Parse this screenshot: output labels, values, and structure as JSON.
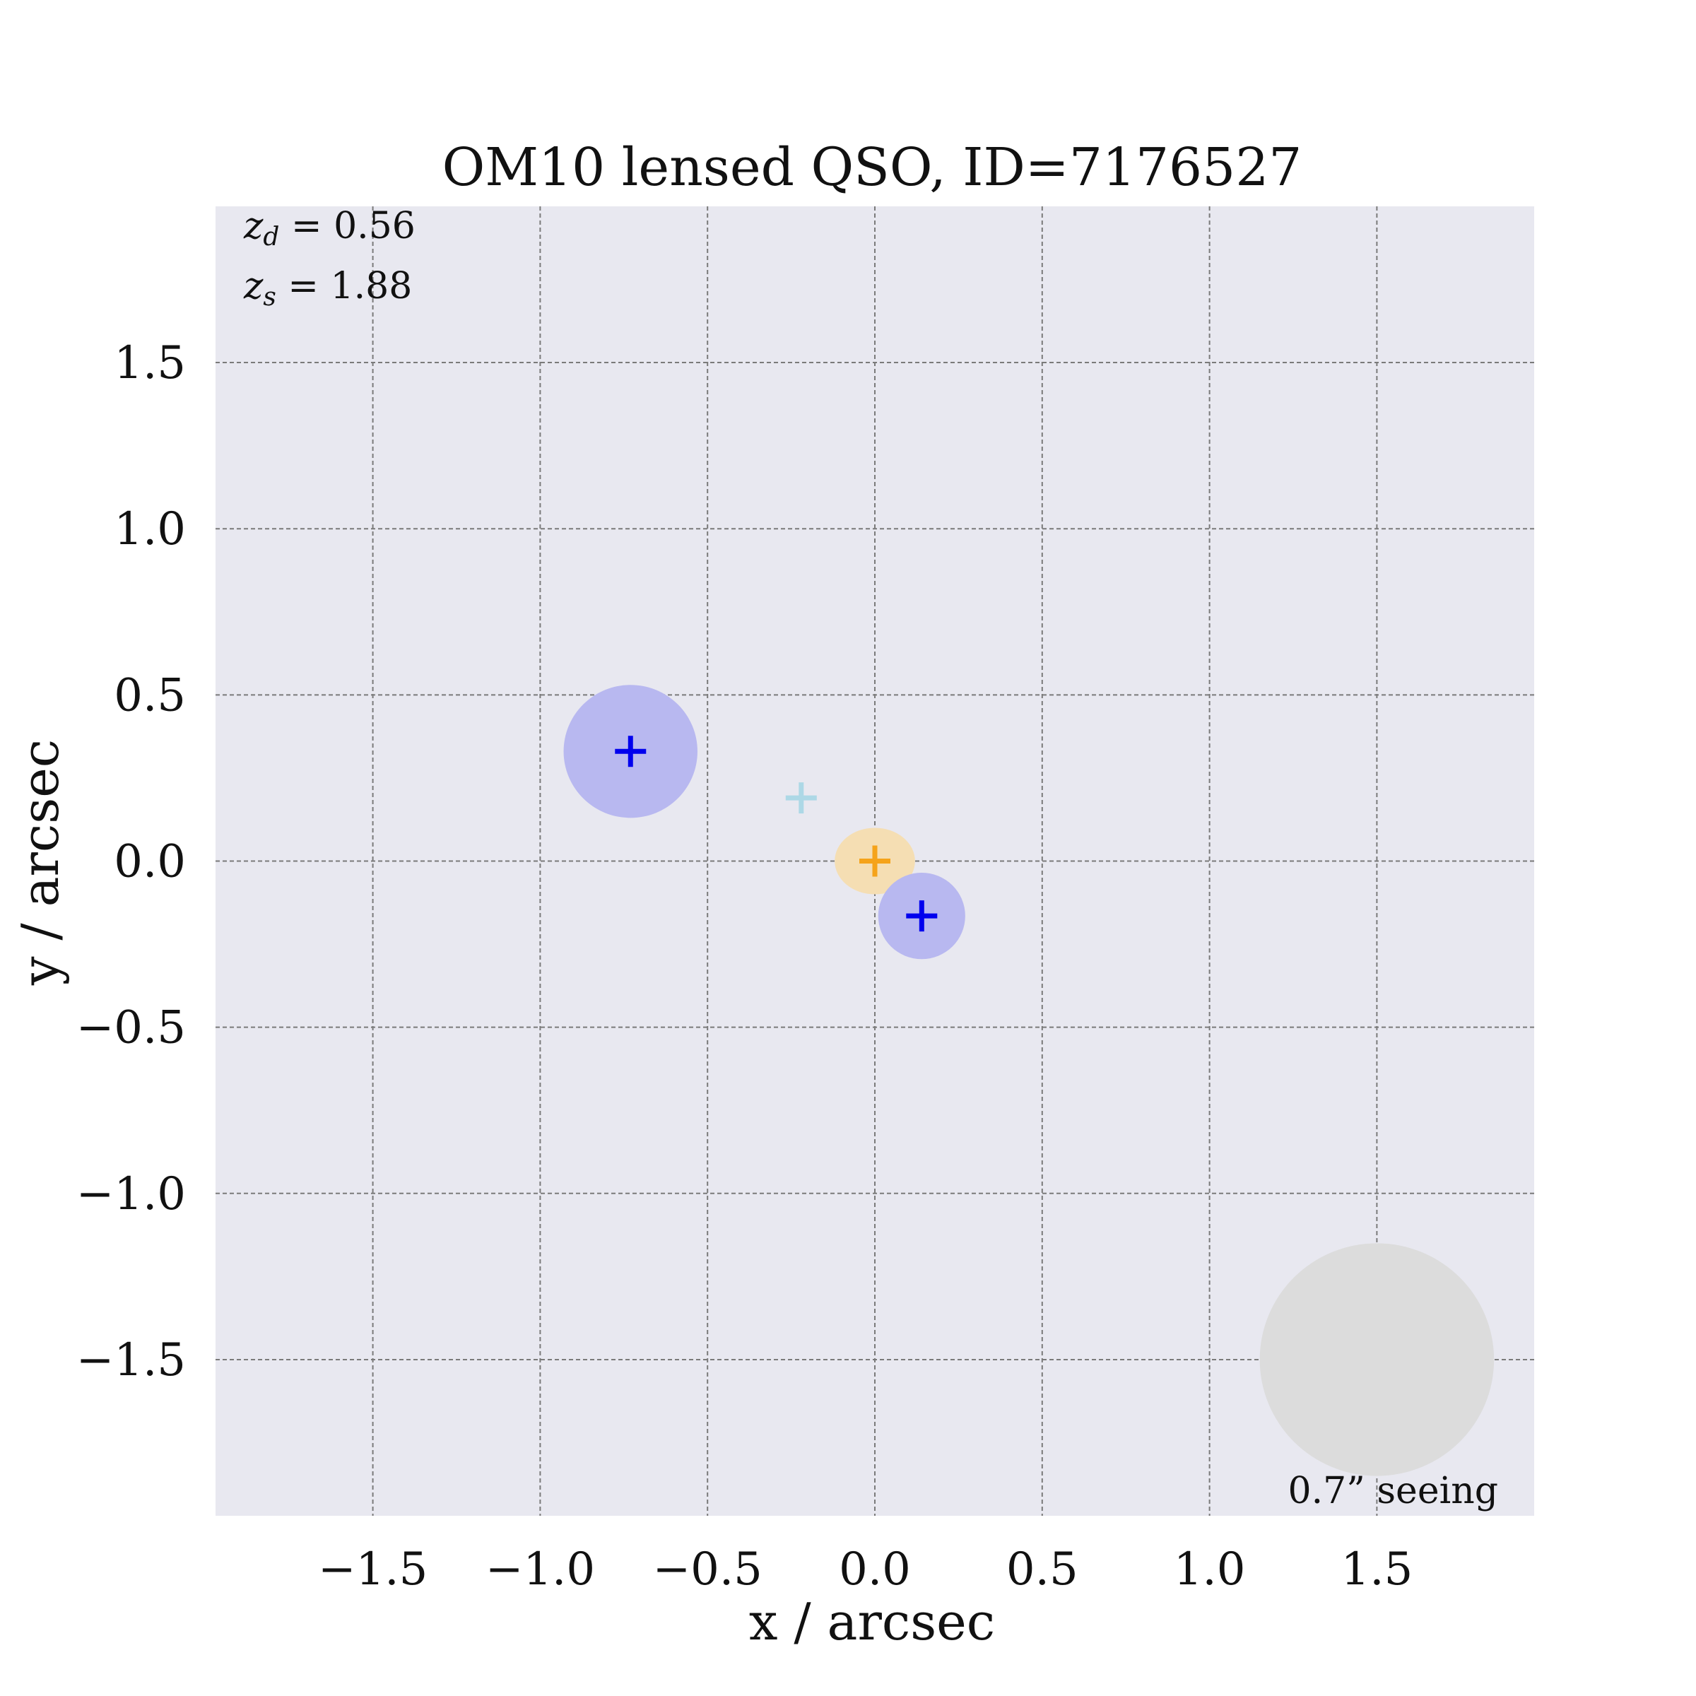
{
  "chart_data": {
    "type": "scatter",
    "title": "OM10 lensed QSO, ID=7176527",
    "xlabel": "x / arcsec",
    "ylabel": "y / arcsec",
    "xlim": [
      -1.97,
      1.97
    ],
    "ylim": [
      -1.97,
      1.97
    ],
    "grid": true,
    "grid_style": "dashed",
    "background": "#e8e8f0",
    "xticks": [
      -1.5,
      -1.0,
      -0.5,
      0.0,
      0.5,
      1.0,
      1.5
    ],
    "yticks": [
      -1.5,
      -1.0,
      -0.5,
      0.0,
      0.5,
      1.0,
      1.5
    ],
    "xtick_labels": [
      "−1.5",
      "−1.0",
      "−0.5",
      "0.0",
      "0.5",
      "1.0",
      "1.5"
    ],
    "ytick_labels": [
      "−1.5",
      "−1.0",
      "−0.5",
      "0.0",
      "0.5",
      "1.0",
      "1.5"
    ],
    "annotations": {
      "zd": {
        "symbol": "z",
        "sub": "d",
        "value": " = 0.56"
      },
      "zs": {
        "symbol": "z",
        "sub": "s",
        "value": " = 1.88"
      },
      "seeing": "0.7” seeing"
    },
    "seeing_disk": {
      "x": 1.5,
      "y": -1.5,
      "diameter": 0.7,
      "color": "#dcdcdc"
    },
    "lens": {
      "x": 0.0,
      "y": 0.0,
      "rx": 0.12,
      "ry": 0.1,
      "fill": "#f5deb3",
      "marker_color": "#f5a31a"
    },
    "source": {
      "x": -0.22,
      "y": 0.19,
      "marker_color": "#add8e6"
    },
    "images": [
      {
        "x": -0.73,
        "y": 0.33,
        "radius": 0.2,
        "fill": "#b8b8f0",
        "marker_color": "#0000ee"
      },
      {
        "x": 0.14,
        "y": -0.165,
        "radius": 0.13,
        "fill": "#b8b8f0",
        "marker_color": "#0000ee"
      }
    ]
  }
}
